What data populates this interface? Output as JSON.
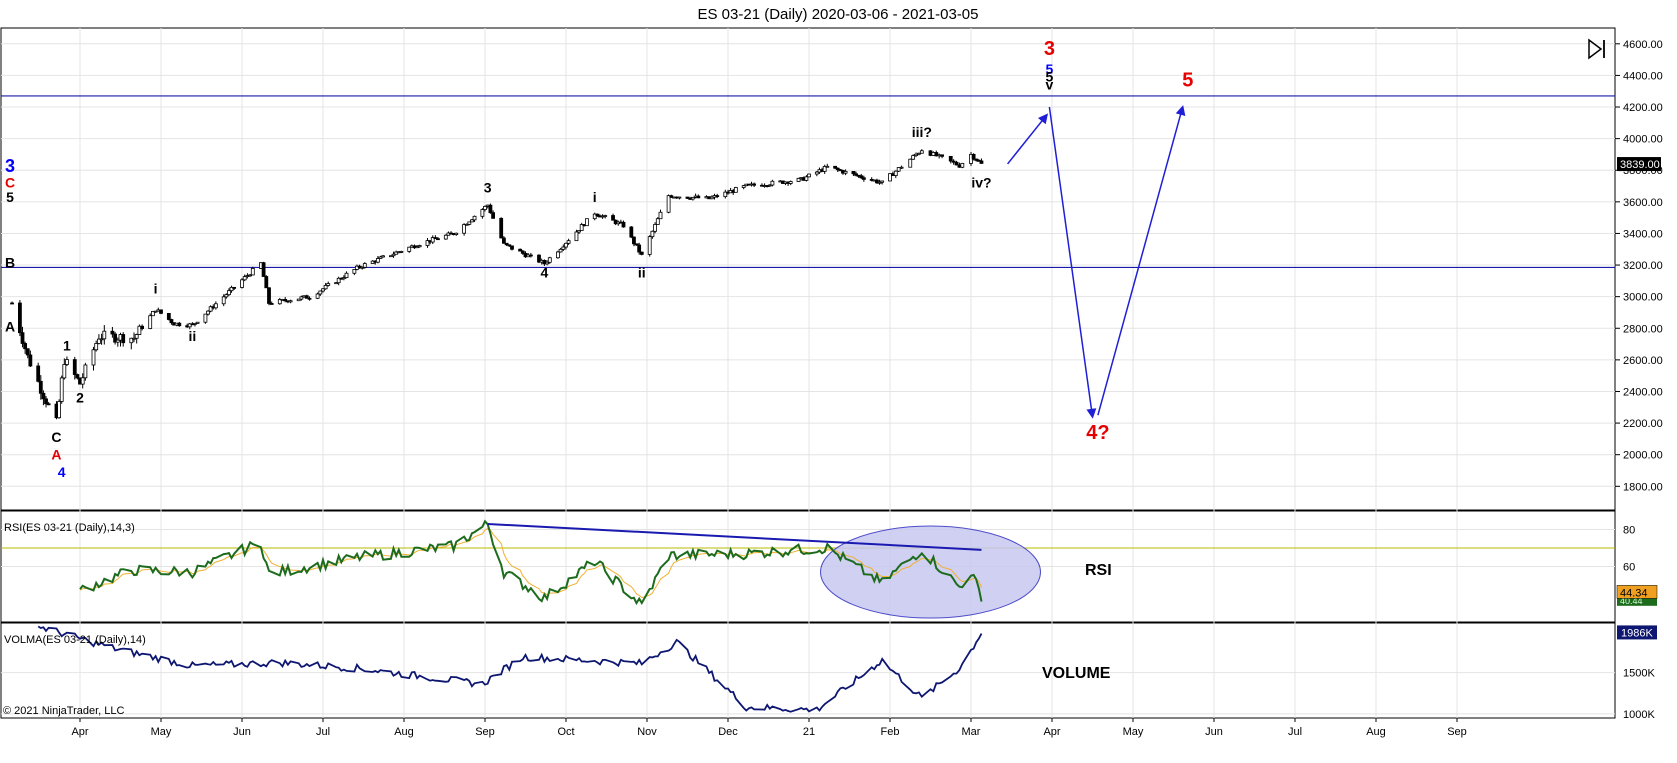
{
  "window_title": "ES 03-21 (Daily)  2020-03-06 - 2021-03-05",
  "copyright": "© 2021 NinjaTrader, LLC",
  "colors": {
    "up_candle": "#ffffff",
    "down_candle": "#000000",
    "horizontal_lines": "#1a1aa8",
    "wave_black": "#000000",
    "wave_red": "#e60000",
    "wave_blue": "#0000ff",
    "arrow": "#1f1fd6",
    "rsi_line": "#1d6b1d",
    "rsi_signal": "#f0b030",
    "rsi_level_line": "#b8b800",
    "rsi_trendline": "#1a1ab0",
    "rsi_ellipse_fill": "#c8c8f2",
    "volume_line": "#0d1670"
  },
  "chart_data": [
    {
      "type": "candlestick",
      "panel": "price",
      "title": "ES 03-21 (Daily)  2020-03-06 - 2021-03-05",
      "x_axis_labels": [
        "Apr",
        "May",
        "Jun",
        "Jul",
        "Aug",
        "Sep",
        "Oct",
        "Nov",
        "Dec",
        "21",
        "Feb",
        "Mar",
        "Apr",
        "May",
        "Jun",
        "Jul",
        "Aug",
        "Sep"
      ],
      "y_ticks": [
        "4600.00",
        "4400.00",
        "4200.00",
        "4000.00",
        "3800.00",
        "3600.00",
        "3400.00",
        "3200.00",
        "3000.00",
        "2800.00",
        "2600.00",
        "2400.00",
        "2200.00",
        "2000.00",
        "1800.00"
      ],
      "ylim": [
        1650,
        4700
      ],
      "last_price_label": "3839.00",
      "horizontal_lines": [
        4270,
        3185
      ],
      "price_path": [
        [
          "2020-03-06",
          2960
        ],
        [
          "2020-03-12",
          2620
        ],
        [
          "2020-03-18",
          2380
        ],
        [
          "2020-03-23",
          2200
        ],
        [
          "2020-03-26",
          2600
        ],
        [
          "2020-04-01",
          2450
        ],
        [
          "2020-04-08",
          2750
        ],
        [
          "2020-04-21",
          2740
        ],
        [
          "2020-04-29",
          2920
        ],
        [
          "2020-05-06",
          2830
        ],
        [
          "2020-05-13",
          2820
        ],
        [
          "2020-05-27",
          3030
        ],
        [
          "2020-06-08",
          3210
        ],
        [
          "2020-06-11",
          2960
        ],
        [
          "2020-06-26",
          3000
        ],
        [
          "2020-07-15",
          3190
        ],
        [
          "2020-08-06",
          3330
        ],
        [
          "2020-08-20",
          3400
        ],
        [
          "2020-09-02",
          3580
        ],
        [
          "2020-09-08",
          3330
        ],
        [
          "2020-09-23",
          3210
        ],
        [
          "2020-10-12",
          3530
        ],
        [
          "2020-10-23",
          3450
        ],
        [
          "2020-10-30",
          3260
        ],
        [
          "2020-11-09",
          3640
        ],
        [
          "2020-11-24",
          3620
        ],
        [
          "2020-12-08",
          3700
        ],
        [
          "2020-12-29",
          3740
        ],
        [
          "2021-01-08",
          3820
        ],
        [
          "2021-01-29",
          3720
        ],
        [
          "2021-02-12",
          3930
        ],
        [
          "2021-02-25",
          3830
        ],
        [
          "2021-03-01",
          3900
        ],
        [
          "2021-03-05",
          3839
        ]
      ],
      "projection_arrows": [
        {
          "from": [
            "2021-03-15",
            3840
          ],
          "to": [
            "2021-03-30",
            4150
          ]
        },
        {
          "from": [
            "2021-03-31",
            4200
          ],
          "to": [
            "2021-04-16",
            2240
          ]
        },
        {
          "from": [
            "2021-04-18",
            2250
          ],
          "to": [
            "2021-05-20",
            4200
          ]
        }
      ],
      "wave_labels": [
        {
          "text": "3",
          "color": "blue",
          "x": "2020-03-06",
          "price": 3790
        },
        {
          "text": "C",
          "color": "red",
          "x": "2020-03-06",
          "price": 3690
        },
        {
          "text": "5",
          "color": "black",
          "x": "2020-03-06",
          "price": 3600
        },
        {
          "text": "B",
          "color": "black",
          "x": "2020-03-06",
          "price": 3185
        },
        {
          "text": "A",
          "color": "black",
          "x": "2020-03-06",
          "price": 2780
        },
        {
          "text": "1",
          "color": "black",
          "x": "2020-03-27",
          "price": 2660
        },
        {
          "text": "2",
          "color": "black",
          "x": "2020-04-01",
          "price": 2330
        },
        {
          "text": "C",
          "color": "black",
          "x": "2020-03-23",
          "price": 2080
        },
        {
          "text": "A",
          "color": "red",
          "x": "2020-03-23",
          "price": 1970
        },
        {
          "text": "4",
          "color": "blue",
          "x": "2020-03-25",
          "price": 1860
        },
        {
          "text": "i",
          "color": "black",
          "x": "2020-04-29",
          "price": 3020
        },
        {
          "text": "ii",
          "color": "black",
          "x": "2020-05-13",
          "price": 2720
        },
        {
          "text": "3",
          "color": "black",
          "x": "2020-09-02",
          "price": 3660
        },
        {
          "text": "4",
          "color": "black",
          "x": "2020-09-23",
          "price": 3120
        },
        {
          "text": "i",
          "color": "black",
          "x": "2020-10-12",
          "price": 3600
        },
        {
          "text": "ii",
          "color": "black",
          "x": "2020-10-30",
          "price": 3120
        },
        {
          "text": "iii?",
          "color": "black",
          "x": "2021-02-12",
          "price": 4010
        },
        {
          "text": "iv?",
          "color": "black",
          "x": "2021-03-05",
          "price": 3690
        },
        {
          "text": "3",
          "color": "red",
          "x": "2021-03-31",
          "price": 4530
        },
        {
          "text": "5",
          "color": "blue",
          "x": "2021-03-31",
          "price": 4410
        },
        {
          "text": "5",
          "color": "black",
          "x": "2021-03-31",
          "price": 4360
        },
        {
          "text": "v",
          "color": "black",
          "x": "2021-03-31",
          "price": 4310
        },
        {
          "text": "4?",
          "color": "red",
          "x": "2021-04-18",
          "price": 2100
        },
        {
          "text": "5",
          "color": "red",
          "x": "2021-05-22",
          "price": 4330
        }
      ]
    },
    {
      "type": "line",
      "panel": "rsi",
      "label": "RSI(ES 03-21 (Daily),14,3)",
      "y_ticks": [
        "80",
        "60"
      ],
      "ylim": [
        30,
        90
      ],
      "level_line": 70,
      "value_labels": [
        "44.34",
        "40.44"
      ],
      "annotation": "RSI",
      "rsi_path": [
        [
          "2020-04-01",
          47
        ],
        [
          "2020-04-20",
          58
        ],
        [
          "2020-05-13",
          57
        ],
        [
          "2020-06-08",
          73
        ],
        [
          "2020-06-11",
          56
        ],
        [
          "2020-07-15",
          65
        ],
        [
          "2020-08-20",
          71
        ],
        [
          "2020-09-02",
          83
        ],
        [
          "2020-09-08",
          57
        ],
        [
          "2020-09-23",
          43
        ],
        [
          "2020-10-12",
          63
        ],
        [
          "2020-10-30",
          39
        ],
        [
          "2020-11-09",
          66
        ],
        [
          "2020-12-08",
          67
        ],
        [
          "2021-01-08",
          70
        ],
        [
          "2021-01-29",
          51
        ],
        [
          "2021-02-12",
          69
        ],
        [
          "2021-02-25",
          49
        ],
        [
          "2021-03-01",
          57
        ],
        [
          "2021-03-05",
          44
        ]
      ],
      "trendline": [
        [
          "2020-09-02",
          83
        ],
        [
          "2021-03-05",
          69
        ]
      ]
    },
    {
      "type": "line",
      "panel": "volume",
      "label": "VOLMA(ES 03-21 (Daily),14)",
      "y_ticks": [
        "1500K",
        "1000K"
      ],
      "ylim": [
        950,
        2100
      ],
      "value_label": "1986K",
      "annotation": "VOLUME",
      "volume_path": [
        [
          "2020-03-16",
          2060
        ],
        [
          "2020-04-15",
          1780
        ],
        [
          "2020-05-13",
          1580
        ],
        [
          "2020-06-15",
          1620
        ],
        [
          "2020-07-15",
          1550
        ],
        [
          "2020-08-31",
          1360
        ],
        [
          "2020-09-15",
          1690
        ],
        [
          "2020-10-30",
          1610
        ],
        [
          "2020-11-12",
          1870
        ],
        [
          "2020-12-08",
          1080
        ],
        [
          "2021-01-04",
          1050
        ],
        [
          "2021-01-29",
          1650
        ],
        [
          "2021-02-12",
          1190
        ],
        [
          "2021-02-25",
          1550
        ],
        [
          "2021-03-05",
          1986
        ]
      ]
    }
  ]
}
